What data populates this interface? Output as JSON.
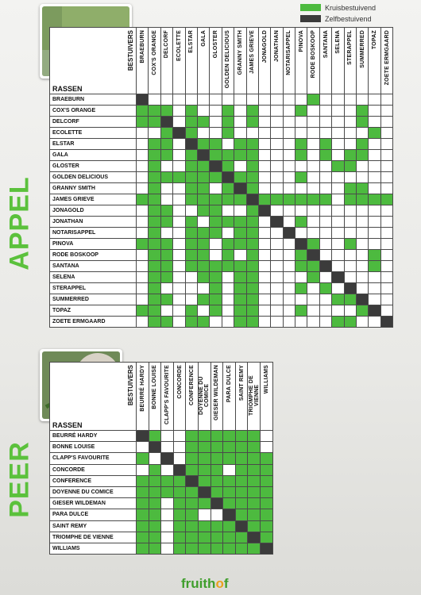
{
  "legend": {
    "cross": {
      "label": "Kruisbestuivend",
      "color": "#4dba3f"
    },
    "self": {
      "label": "Zelfbestuivend",
      "color": "#3b3b3b"
    }
  },
  "apple": {
    "section_title": "APPEL",
    "corner_top": "BESTUIVERS",
    "corner_bottom": "RASSEN",
    "varieties": [
      "BRAEBURN",
      "COX'S ORANGE",
      "DELCORF",
      "ECOLETTE",
      "ELSTAR",
      "GALA",
      "GLOSTER",
      "GOLDEN DELICIOUS",
      "GRANNY SMITH",
      "JAMES GRIEVE",
      "JONAGOLD",
      "JONATHAN",
      "NOTARISAPPEL",
      "PINOVA",
      "RODE BOSKOOP",
      "SANTANA",
      "SELENA",
      "STERAPPEL",
      "SUMMERRED",
      "TOPAZ",
      "ZOETE ERMGAARD"
    ],
    "matrix": [
      "S0000000000000G000000",
      "GGG0G00G0G000G0000G00",
      "GGS0GG0G0G00000000G00",
      "00GSG00G00000000000G0",
      "0GG0SGG0GG000G0G00G00",
      "0GG0GSGGGG000G0G0GG00",
      "0G00GGSG0G000000GG000",
      "0GGGGGGSGG000G0000000",
      "0G00GG0GSG0000000GG00",
      "GG00GGGGGSGGGGGG0GGGG",
      "0GG00GG00GS0000000000",
      "0GG0G0GGGG0S0G0000000",
      "0G00GGG0GG00S00000000",
      "GGG0GG0GGG000SG00G000",
      "0GG0GG0G0G000GS0000G0",
      "0GG0GGGGGG000GGS000G0",
      "0GG00GG0GG0000G0S0000",
      "0G0000G0GG000G0G0S000",
      "0GG00GG0GG000000GGS00",
      "GG00G0G0GG000G0000GS0",
      "0GG0GG00GG000000GG00S"
    ]
  },
  "pear": {
    "section_title": "PEER",
    "corner_top": "BESTUIVERS",
    "corner_bottom": "RASSEN",
    "varieties": [
      "BEURRÉ HARDY",
      "BONNE LOUISE",
      "CLAPP'S FAVOURITE",
      "CONCORDE",
      "CONFERENCE",
      "DOYENNE DU COMICE",
      "GIESER WILDEMAN",
      "PARA DULCE",
      "SAINT REMY",
      "TRIOMPHE DE VIENNE",
      "WILLIAMS"
    ],
    "matrix": [
      "SG00GGGGGG0",
      "0S00GGGGGG0",
      "G0S0GGGGGGG",
      "0G0SGGG0GGG",
      "GGGGSGGGGGG",
      "GGGGGSGGGGG",
      "GG0GGGSGGGG",
      "GG0GG00SGGG",
      "GG0GGGGGSGG",
      "GG0GGGGGGSG",
      "GG0GGGGGGGS"
    ]
  },
  "brand": {
    "prefix": "fruith",
    "o": "o",
    "suffix": "f"
  }
}
